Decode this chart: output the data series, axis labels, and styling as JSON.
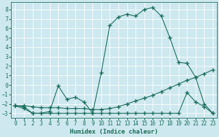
{
  "xlabel": "Humidex (Indice chaleur)",
  "bg_color": "#cde8ee",
  "grid_color": "#ffffff",
  "line_color": "#1a6b5a",
  "xlim": [
    -0.5,
    23.5
  ],
  "ylim": [
    -3.5,
    8.8
  ],
  "yticks": [
    -3,
    -2,
    -1,
    0,
    1,
    2,
    3,
    4,
    5,
    6,
    7,
    8
  ],
  "xticks": [
    0,
    1,
    2,
    3,
    4,
    5,
    6,
    7,
    8,
    9,
    10,
    11,
    12,
    13,
    14,
    15,
    16,
    17,
    18,
    19,
    20,
    21,
    22,
    23
  ],
  "series1_x": [
    0,
    1,
    2,
    3,
    4,
    5,
    6,
    7,
    8,
    9,
    10,
    11,
    12,
    13,
    14,
    15,
    16,
    17,
    18,
    19,
    20,
    21,
    22,
    23
  ],
  "series1_y": [
    -2.2,
    -2.5,
    -3.0,
    -3.0,
    -2.8,
    -0.1,
    -1.5,
    -1.3,
    -1.8,
    -3.0,
    1.3,
    6.3,
    7.2,
    7.5,
    7.3,
    8.0,
    8.2,
    7.3,
    5.0,
    2.4,
    2.3,
    0.8,
    -2.0,
    -3.0
  ],
  "series2_x": [
    0,
    1,
    2,
    3,
    4,
    5,
    6,
    7,
    8,
    9,
    10,
    11,
    12,
    13,
    14,
    15,
    16,
    17,
    18,
    19,
    20,
    21,
    22,
    23
  ],
  "series2_y": [
    -2.2,
    -2.2,
    -2.3,
    -2.4,
    -2.4,
    -2.4,
    -2.5,
    -2.5,
    -2.5,
    -2.6,
    -2.6,
    -2.5,
    -2.3,
    -2.0,
    -1.7,
    -1.4,
    -1.1,
    -0.7,
    -0.3,
    0.1,
    0.5,
    0.8,
    1.2,
    1.6
  ],
  "series3_x": [
    0,
    1,
    2,
    3,
    4,
    5,
    6,
    7,
    8,
    9,
    10,
    11,
    12,
    13,
    14,
    15,
    16,
    17,
    18,
    19,
    20,
    21,
    22,
    23
  ],
  "series3_y": [
    -2.2,
    -2.3,
    -3.0,
    -3.0,
    -3.0,
    -3.0,
    -3.0,
    -3.0,
    -3.0,
    -3.0,
    -3.0,
    -3.0,
    -3.0,
    -3.0,
    -3.0,
    -3.0,
    -3.0,
    -3.0,
    -3.0,
    -3.0,
    -0.8,
    -1.8,
    -2.3,
    -3.0
  ],
  "marker": "+",
  "markersize": 4,
  "linewidth": 0.8
}
